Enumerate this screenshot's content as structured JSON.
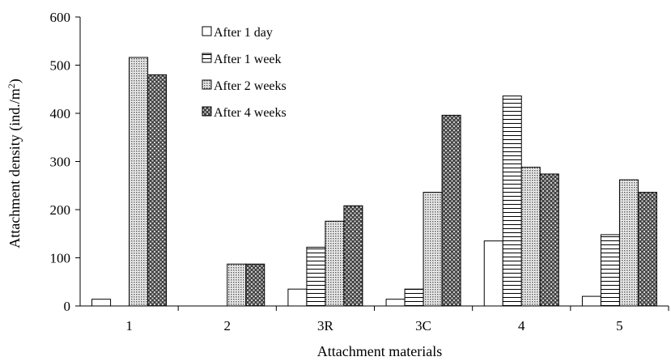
{
  "chart_data": {
    "type": "bar",
    "title": "",
    "xlabel": "Attachment materials",
    "ylabel": "Attachment density (ind./m",
    "ylabel_sup": "2",
    "ylabel_close": ")",
    "ylim": [
      0,
      600
    ],
    "yticks": [
      0,
      100,
      200,
      300,
      400,
      500,
      600
    ],
    "grid": false,
    "legend_position": "top-center",
    "categories": [
      "1",
      "2",
      "3R",
      "3C",
      "4",
      "5"
    ],
    "series": [
      {
        "name": "After 1 day",
        "pattern": "white",
        "values": [
          14,
          0,
          35,
          14,
          135,
          20
        ]
      },
      {
        "name": "After 1 week",
        "pattern": "horizontal",
        "values": [
          0,
          0,
          122,
          35,
          436,
          148
        ]
      },
      {
        "name": "After 2 weeks",
        "pattern": "dots",
        "values": [
          516,
          87,
          176,
          236,
          288,
          262
        ]
      },
      {
        "name": "After 4 weeks",
        "pattern": "crosshatch",
        "values": [
          480,
          87,
          208,
          396,
          274,
          236
        ]
      }
    ]
  }
}
